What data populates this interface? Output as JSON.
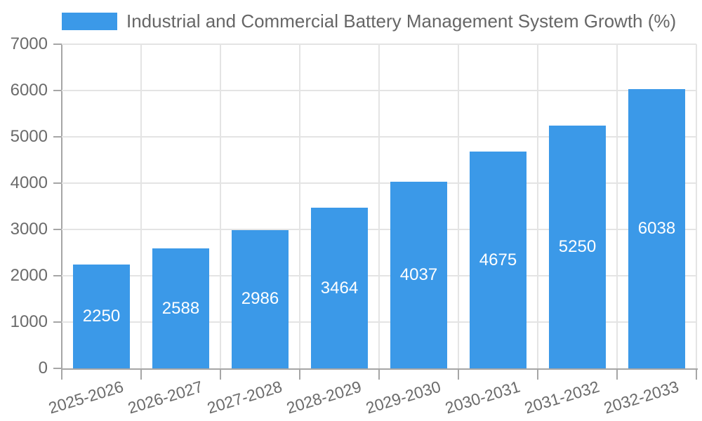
{
  "chart_data": {
    "type": "bar",
    "title": "Industrial and Commercial Battery Management System Growth (%)",
    "categories": [
      "2025-2026",
      "2026-2027",
      "2027-2028",
      "2028-2029",
      "2029-2030",
      "2030-2031",
      "2031-2032",
      "2032-2033"
    ],
    "values": [
      2250,
      2588,
      2986,
      3464,
      4037,
      4675,
      5250,
      6038
    ],
    "yticks": [
      0,
      1000,
      2000,
      3000,
      4000,
      5000,
      6000,
      7000
    ],
    "ylim": [
      0,
      7000
    ],
    "xlabel": "",
    "ylabel": "",
    "grid": true,
    "legend_position": "top",
    "bar_label_position": "center"
  },
  "colors": {
    "bar": "#3b99e8",
    "bar_label": "#ffffff",
    "title_text": "#666666",
    "tick_text": "#6b6b6b",
    "grid": "#e4e4e4",
    "axis": "#a6a6a6",
    "background": "#ffffff"
  }
}
